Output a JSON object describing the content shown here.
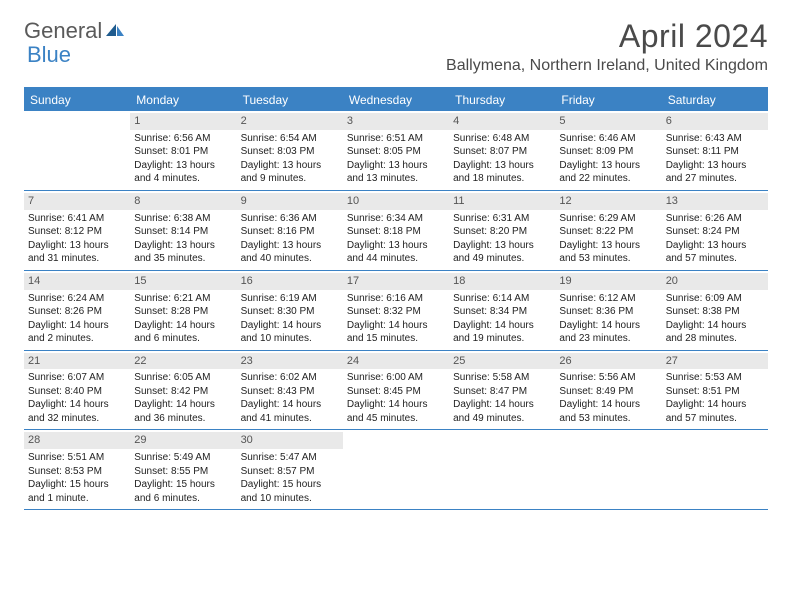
{
  "logo": {
    "text1": "General",
    "text2": "Blue"
  },
  "title": "April 2024",
  "location": "Ballymena, Northern Ireland, United Kingdom",
  "colors": {
    "header_bg": "#3b82c4",
    "header_text": "#ffffff",
    "daynum_bg": "#e9e9e9",
    "daynum_text": "#555555",
    "border": "#3b82c4",
    "body_text": "#222222",
    "page_bg": "#ffffff"
  },
  "typography": {
    "title_fontsize": 32,
    "location_fontsize": 16,
    "dayheader_fontsize": 12,
    "daynum_fontsize": 11,
    "cell_fontsize": 10
  },
  "day_names": [
    "Sunday",
    "Monday",
    "Tuesday",
    "Wednesday",
    "Thursday",
    "Friday",
    "Saturday"
  ],
  "weeks": [
    [
      {
        "num": "",
        "lines": []
      },
      {
        "num": "1",
        "lines": [
          "Sunrise: 6:56 AM",
          "Sunset: 8:01 PM",
          "Daylight: 13 hours and 4 minutes."
        ]
      },
      {
        "num": "2",
        "lines": [
          "Sunrise: 6:54 AM",
          "Sunset: 8:03 PM",
          "Daylight: 13 hours and 9 minutes."
        ]
      },
      {
        "num": "3",
        "lines": [
          "Sunrise: 6:51 AM",
          "Sunset: 8:05 PM",
          "Daylight: 13 hours and 13 minutes."
        ]
      },
      {
        "num": "4",
        "lines": [
          "Sunrise: 6:48 AM",
          "Sunset: 8:07 PM",
          "Daylight: 13 hours and 18 minutes."
        ]
      },
      {
        "num": "5",
        "lines": [
          "Sunrise: 6:46 AM",
          "Sunset: 8:09 PM",
          "Daylight: 13 hours and 22 minutes."
        ]
      },
      {
        "num": "6",
        "lines": [
          "Sunrise: 6:43 AM",
          "Sunset: 8:11 PM",
          "Daylight: 13 hours and 27 minutes."
        ]
      }
    ],
    [
      {
        "num": "7",
        "lines": [
          "Sunrise: 6:41 AM",
          "Sunset: 8:12 PM",
          "Daylight: 13 hours and 31 minutes."
        ]
      },
      {
        "num": "8",
        "lines": [
          "Sunrise: 6:38 AM",
          "Sunset: 8:14 PM",
          "Daylight: 13 hours and 35 minutes."
        ]
      },
      {
        "num": "9",
        "lines": [
          "Sunrise: 6:36 AM",
          "Sunset: 8:16 PM",
          "Daylight: 13 hours and 40 minutes."
        ]
      },
      {
        "num": "10",
        "lines": [
          "Sunrise: 6:34 AM",
          "Sunset: 8:18 PM",
          "Daylight: 13 hours and 44 minutes."
        ]
      },
      {
        "num": "11",
        "lines": [
          "Sunrise: 6:31 AM",
          "Sunset: 8:20 PM",
          "Daylight: 13 hours and 49 minutes."
        ]
      },
      {
        "num": "12",
        "lines": [
          "Sunrise: 6:29 AM",
          "Sunset: 8:22 PM",
          "Daylight: 13 hours and 53 minutes."
        ]
      },
      {
        "num": "13",
        "lines": [
          "Sunrise: 6:26 AM",
          "Sunset: 8:24 PM",
          "Daylight: 13 hours and 57 minutes."
        ]
      }
    ],
    [
      {
        "num": "14",
        "lines": [
          "Sunrise: 6:24 AM",
          "Sunset: 8:26 PM",
          "Daylight: 14 hours and 2 minutes."
        ]
      },
      {
        "num": "15",
        "lines": [
          "Sunrise: 6:21 AM",
          "Sunset: 8:28 PM",
          "Daylight: 14 hours and 6 minutes."
        ]
      },
      {
        "num": "16",
        "lines": [
          "Sunrise: 6:19 AM",
          "Sunset: 8:30 PM",
          "Daylight: 14 hours and 10 minutes."
        ]
      },
      {
        "num": "17",
        "lines": [
          "Sunrise: 6:16 AM",
          "Sunset: 8:32 PM",
          "Daylight: 14 hours and 15 minutes."
        ]
      },
      {
        "num": "18",
        "lines": [
          "Sunrise: 6:14 AM",
          "Sunset: 8:34 PM",
          "Daylight: 14 hours and 19 minutes."
        ]
      },
      {
        "num": "19",
        "lines": [
          "Sunrise: 6:12 AM",
          "Sunset: 8:36 PM",
          "Daylight: 14 hours and 23 minutes."
        ]
      },
      {
        "num": "20",
        "lines": [
          "Sunrise: 6:09 AM",
          "Sunset: 8:38 PM",
          "Daylight: 14 hours and 28 minutes."
        ]
      }
    ],
    [
      {
        "num": "21",
        "lines": [
          "Sunrise: 6:07 AM",
          "Sunset: 8:40 PM",
          "Daylight: 14 hours and 32 minutes."
        ]
      },
      {
        "num": "22",
        "lines": [
          "Sunrise: 6:05 AM",
          "Sunset: 8:42 PM",
          "Daylight: 14 hours and 36 minutes."
        ]
      },
      {
        "num": "23",
        "lines": [
          "Sunrise: 6:02 AM",
          "Sunset: 8:43 PM",
          "Daylight: 14 hours and 41 minutes."
        ]
      },
      {
        "num": "24",
        "lines": [
          "Sunrise: 6:00 AM",
          "Sunset: 8:45 PM",
          "Daylight: 14 hours and 45 minutes."
        ]
      },
      {
        "num": "25",
        "lines": [
          "Sunrise: 5:58 AM",
          "Sunset: 8:47 PM",
          "Daylight: 14 hours and 49 minutes."
        ]
      },
      {
        "num": "26",
        "lines": [
          "Sunrise: 5:56 AM",
          "Sunset: 8:49 PM",
          "Daylight: 14 hours and 53 minutes."
        ]
      },
      {
        "num": "27",
        "lines": [
          "Sunrise: 5:53 AM",
          "Sunset: 8:51 PM",
          "Daylight: 14 hours and 57 minutes."
        ]
      }
    ],
    [
      {
        "num": "28",
        "lines": [
          "Sunrise: 5:51 AM",
          "Sunset: 8:53 PM",
          "Daylight: 15 hours and 1 minute."
        ]
      },
      {
        "num": "29",
        "lines": [
          "Sunrise: 5:49 AM",
          "Sunset: 8:55 PM",
          "Daylight: 15 hours and 6 minutes."
        ]
      },
      {
        "num": "30",
        "lines": [
          "Sunrise: 5:47 AM",
          "Sunset: 8:57 PM",
          "Daylight: 15 hours and 10 minutes."
        ]
      },
      {
        "num": "",
        "lines": []
      },
      {
        "num": "",
        "lines": []
      },
      {
        "num": "",
        "lines": []
      },
      {
        "num": "",
        "lines": []
      }
    ]
  ]
}
